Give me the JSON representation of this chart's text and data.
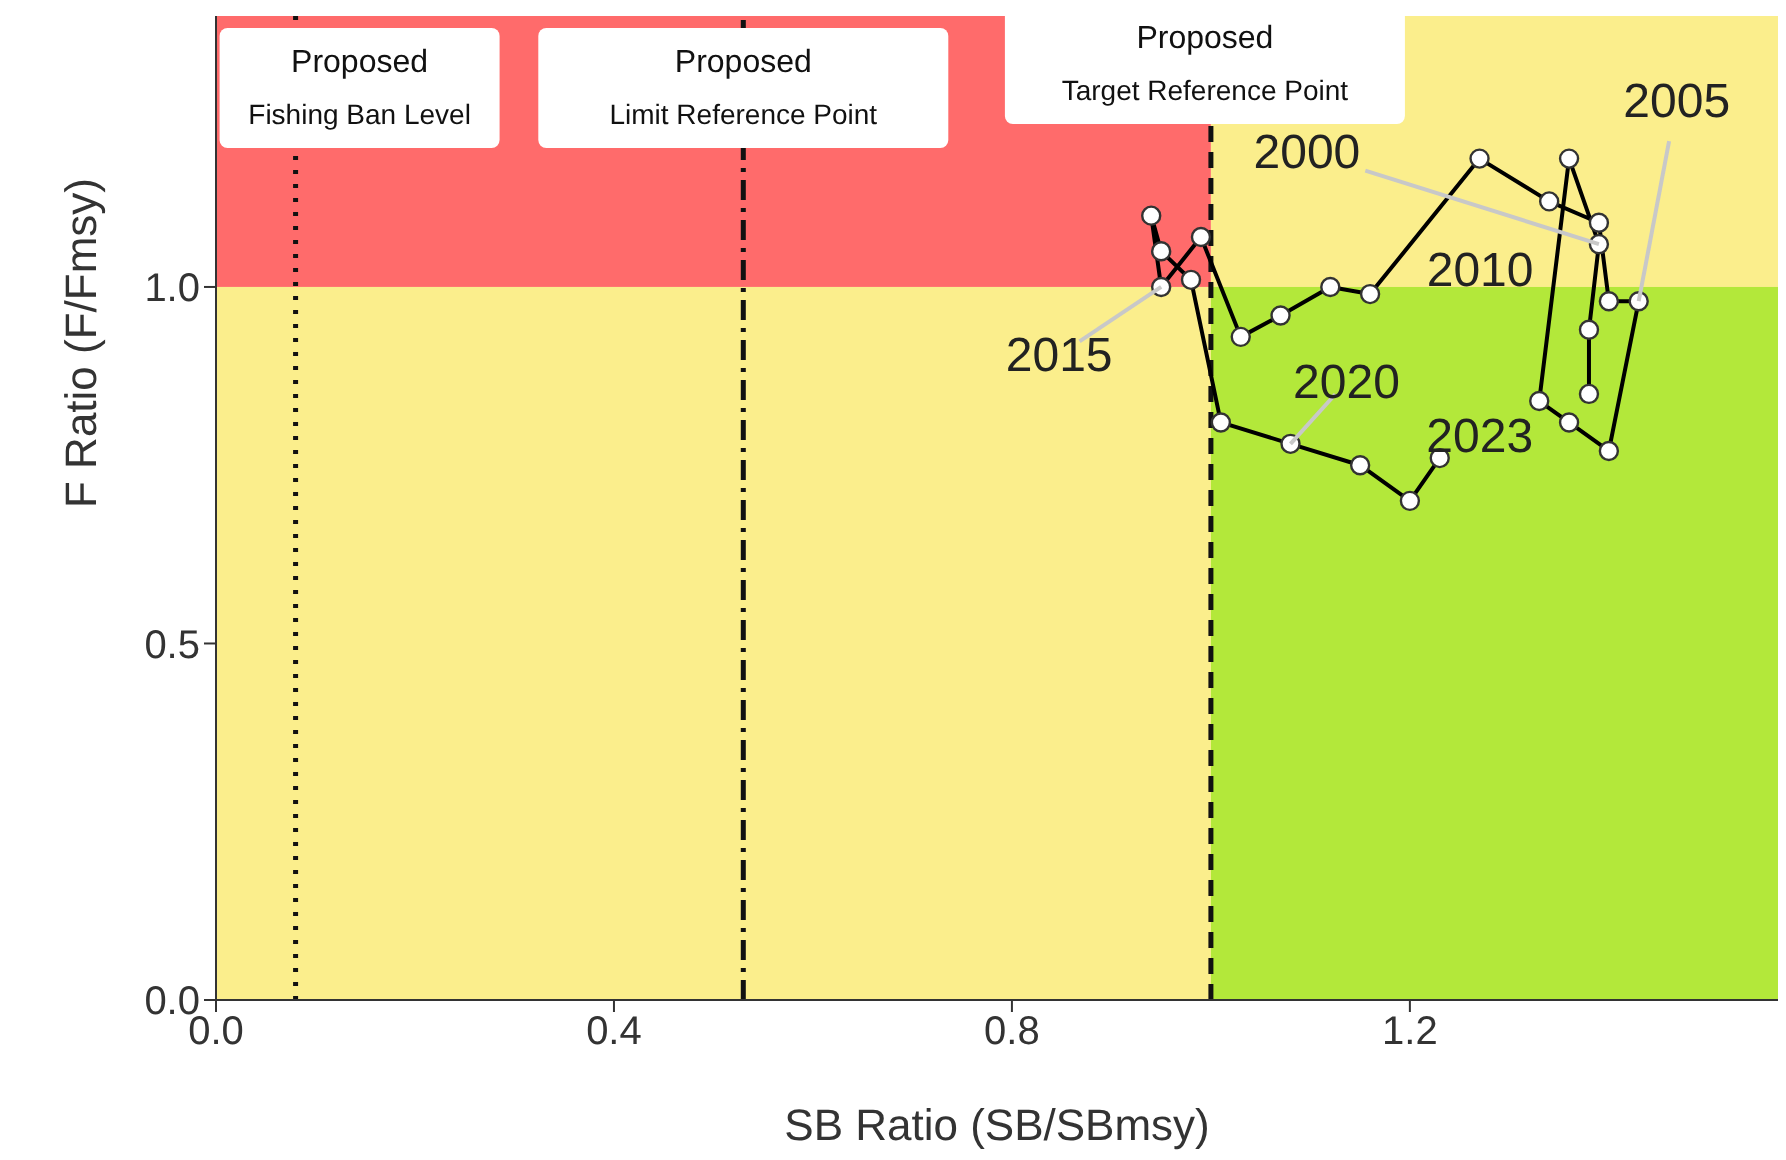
{
  "chart_data": {
    "type": "line",
    "xlabel": "SB Ratio (SB/SBmsy)",
    "ylabel": "F Ratio (F/Fmsy)",
    "x": [
      1.38,
      1.38,
      1.39,
      1.36,
      1.33,
      1.36,
      1.4,
      1.43,
      1.4,
      1.39,
      1.34,
      1.27,
      1.16,
      1.12,
      1.07,
      1.03,
      0.99,
      0.95,
      0.94,
      0.95,
      0.98,
      1.01,
      1.08,
      1.15,
      1.2,
      1.23
    ],
    "series": [
      {
        "color": "#000000",
        "values": [
          0.85,
          0.94,
          1.06,
          1.18,
          0.84,
          0.81,
          0.77,
          0.98,
          0.98,
          1.09,
          1.12,
          1.18,
          0.99,
          1.0,
          0.96,
          0.93,
          1.07,
          1.0,
          1.1,
          1.05,
          1.01,
          0.81,
          0.78,
          0.75,
          0.7,
          0.76
        ]
      }
    ],
    "marker": "circle",
    "line_style": "solid",
    "xlim": [
      0,
      1.57
    ],
    "ylim": [
      0,
      1.38
    ],
    "xticks": [
      {
        "value": 0,
        "label": "0.0"
      },
      {
        "value": 0.4,
        "label": "0.4"
      },
      {
        "value": 0.8,
        "label": "0.8"
      },
      {
        "value": 1.2,
        "label": "1.2"
      }
    ],
    "yticks": [
      {
        "value": 0,
        "label": "0.0"
      },
      {
        "value": 0.5,
        "label": "0.5"
      },
      {
        "value": 1,
        "label": "1.0"
      }
    ],
    "ref_lines": [
      {
        "axis": "x",
        "value": 0.08,
        "label": "Proposed Fishing Ban Level",
        "line_style": "dotted"
      },
      {
        "axis": "x",
        "value": 0.53,
        "label": "Proposed Limit Reference Point",
        "line_style": "dashdot"
      },
      {
        "axis": "x",
        "value": 1,
        "label": "Proposed Target Reference Point",
        "line_style": "dashed"
      }
    ],
    "annotations": [
      {
        "text": "2000",
        "x": 1.39,
        "y": 1.06
      },
      {
        "text": "2005",
        "x": 1.43,
        "y": 0.98
      },
      {
        "text": "2010",
        "x": 1.16,
        "y": 0.99
      },
      {
        "text": "2015",
        "x": 0.95,
        "y": 1.0
      },
      {
        "text": "2020",
        "x": 1.08,
        "y": 0.78
      },
      {
        "text": "2023",
        "x": 1.23,
        "y": 0.76
      }
    ]
  }
}
